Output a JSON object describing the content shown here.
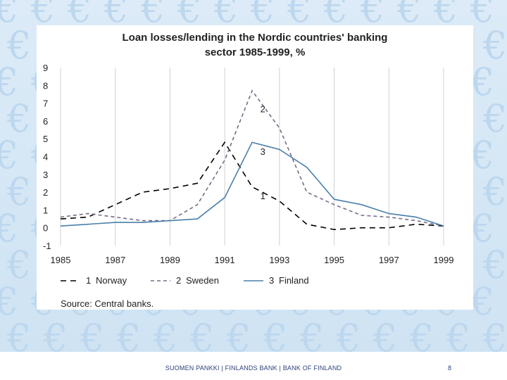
{
  "slide": {
    "footer": "SUOMEN PANKKI | FINLANDS BANK | BANK OF FINLAND",
    "page_number": "8",
    "background_color": "#d3e6f5",
    "decoration_icon": "euro-symbol"
  },
  "chart_data": {
    "type": "line",
    "title_line1": "Loan losses/lending in the Nordic countries' banking",
    "title_line2": "sector 1985-1999, %",
    "xlabel": "",
    "ylabel": "",
    "xlim": [
      1985,
      1999
    ],
    "ylim": [
      -1,
      9
    ],
    "x_ticks": [
      "1985",
      "1987",
      "1989",
      "1991",
      "1993",
      "1995",
      "1997",
      "1999"
    ],
    "y_ticks": [
      "9",
      "8",
      "7",
      "6",
      "5",
      "4",
      "3",
      "2",
      "1",
      "0",
      "-1"
    ],
    "grid": "vertical",
    "x": [
      1985,
      1986,
      1987,
      1988,
      1989,
      1990,
      1991,
      1992,
      1993,
      1994,
      1995,
      1996,
      1997,
      1998,
      1999
    ],
    "series": [
      {
        "name": "Norway",
        "number": "1",
        "color": "#000000",
        "dash": "8,6",
        "values": [
          0.5,
          0.6,
          1.3,
          2.0,
          2.2,
          2.5,
          4.8,
          2.3,
          1.5,
          0.2,
          -0.1,
          0.0,
          0.0,
          0.2,
          0.1
        ]
      },
      {
        "name": "Sweden",
        "number": "2",
        "color": "#7a6a8a",
        "dash": "5,4",
        "values": [
          0.6,
          0.8,
          0.6,
          0.4,
          0.4,
          1.3,
          3.8,
          7.7,
          5.6,
          2.0,
          1.3,
          0.7,
          0.6,
          0.4,
          0.1
        ]
      },
      {
        "name": "Finland",
        "number": "3",
        "color": "#4a7faa",
        "dash": "",
        "values": [
          0.1,
          0.2,
          0.3,
          0.3,
          0.4,
          0.5,
          1.7,
          4.8,
          4.4,
          3.4,
          1.6,
          1.3,
          0.8,
          0.6,
          0.1
        ]
      }
    ],
    "series_labels": [
      {
        "text": "2",
        "x": 1992.3,
        "y": 6.5
      },
      {
        "text": "3",
        "x": 1992.3,
        "y": 4.1
      },
      {
        "text": "1",
        "x": 1992.3,
        "y": 1.6
      }
    ],
    "legend": {
      "position": "bottom",
      "entries": [
        {
          "number": "1",
          "name": "Norway"
        },
        {
          "number": "2",
          "name": "Sweden"
        },
        {
          "number": "3",
          "name": "Finland"
        }
      ]
    },
    "source": "Source: Central banks."
  }
}
